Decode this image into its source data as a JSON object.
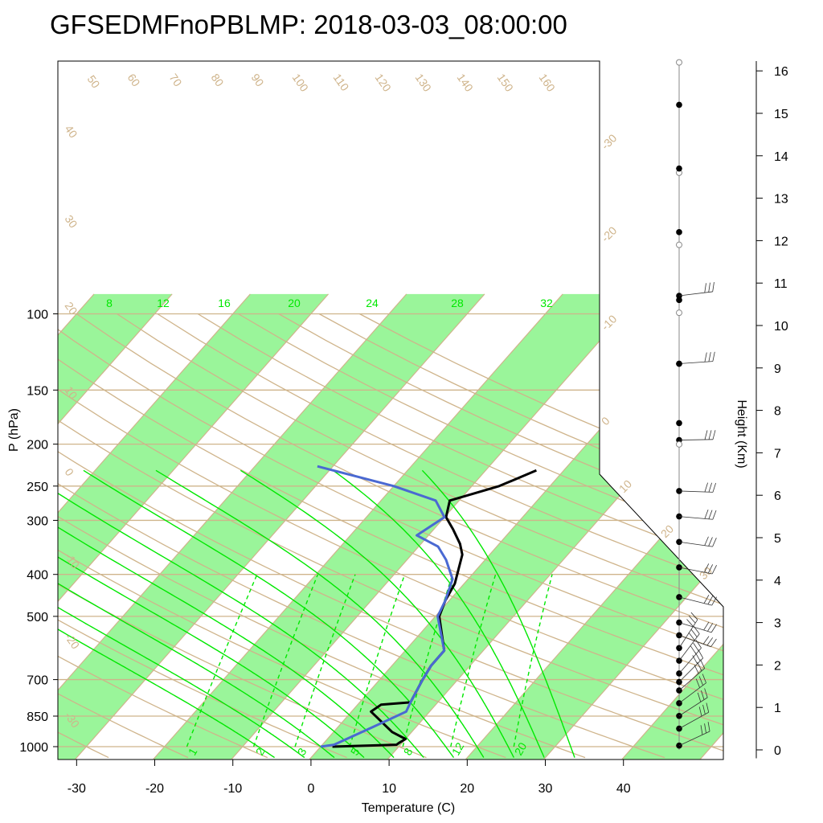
{
  "chart_data": {
    "type": "skew-t",
    "title": "GFSEDMFnoPBLMP: 2018-03-03_08:00:00",
    "xlabel": "Temperature (C)",
    "ylabel": "P (hPa)",
    "height_label": "Height (Km)",
    "x_ticks": [
      "-30",
      "-20",
      "-10",
      "0",
      "10",
      "20",
      "30",
      "40"
    ],
    "pressure_ticks": [
      "100",
      "150",
      "200",
      "250",
      "300",
      "400",
      "500",
      "700",
      "850",
      "1000"
    ],
    "height_ticks": [
      "0",
      "1",
      "2",
      "3",
      "4",
      "5",
      "6",
      "7",
      "8",
      "9",
      "10",
      "11",
      "12",
      "13",
      "14",
      "15",
      "16"
    ],
    "xlim": [
      -33.5,
      36
    ],
    "plim": [
      100,
      1050
    ],
    "dry_adiabat_labels": [
      "50",
      "60",
      "70",
      "80",
      "90",
      "100",
      "110",
      "120",
      "130",
      "140",
      "150",
      "160"
    ],
    "left_temp_labels": [
      "40",
      "30",
      "20",
      "10",
      "0",
      "-10",
      "-20",
      "-30"
    ],
    "right_temp_labels": [
      "-30",
      "-20",
      "-10",
      "0",
      "10",
      "20",
      "30"
    ],
    "moist_adiabat_labels": [
      "8",
      "12",
      "16",
      "20",
      "24",
      "28",
      "32"
    ],
    "mixing_ratio_labels": [
      "1",
      "2",
      "3",
      "5",
      "8",
      "12",
      "20"
    ],
    "series": [
      {
        "name": "Temperature",
        "points": [
          [
            1.5,
            1000
          ],
          [
            9.5,
            990
          ],
          [
            9.6,
            980
          ],
          [
            10.0,
            960
          ],
          [
            7.5,
            925
          ],
          [
            2.5,
            830
          ],
          [
            3.0,
            800
          ],
          [
            6.5,
            790
          ],
          [
            5.5,
            700
          ],
          [
            5.0,
            650
          ],
          [
            5.0,
            600
          ],
          [
            0.5,
            500
          ],
          [
            -0.5,
            460
          ],
          [
            -1.2,
            420
          ],
          [
            -3.5,
            360
          ],
          [
            -5.0,
            340
          ],
          [
            -7.5,
            315
          ],
          [
            -9.8,
            295
          ],
          [
            -11.2,
            270
          ],
          [
            -6.5,
            250
          ],
          [
            -3.5,
            230
          ]
        ]
      },
      {
        "name": "Dew point",
        "points": [
          [
            0.0,
            1000
          ],
          [
            1.5,
            990
          ],
          [
            4.5,
            900
          ],
          [
            7.0,
            830
          ],
          [
            6.5,
            790
          ],
          [
            5.5,
            700
          ],
          [
            5.0,
            650
          ],
          [
            5.0,
            600
          ],
          [
            0.3,
            500
          ],
          [
            -0.5,
            460
          ],
          [
            -2.0,
            410
          ],
          [
            -5.0,
            370
          ],
          [
            -7.5,
            345
          ],
          [
            -11.5,
            325
          ],
          [
            -10.0,
            295
          ],
          [
            -13.0,
            270
          ],
          [
            -20.0,
            250
          ],
          [
            -32.0,
            225
          ]
        ]
      }
    ],
    "wind_barb_heights_km": [
      0.1,
      0.5,
      0.8,
      1.1,
      1.4,
      1.6,
      1.8,
      2.1,
      2.4,
      2.7,
      3.0,
      3.6,
      4.3,
      4.9,
      5.5,
      6.1,
      7.3,
      9.1,
      10.7
    ]
  }
}
